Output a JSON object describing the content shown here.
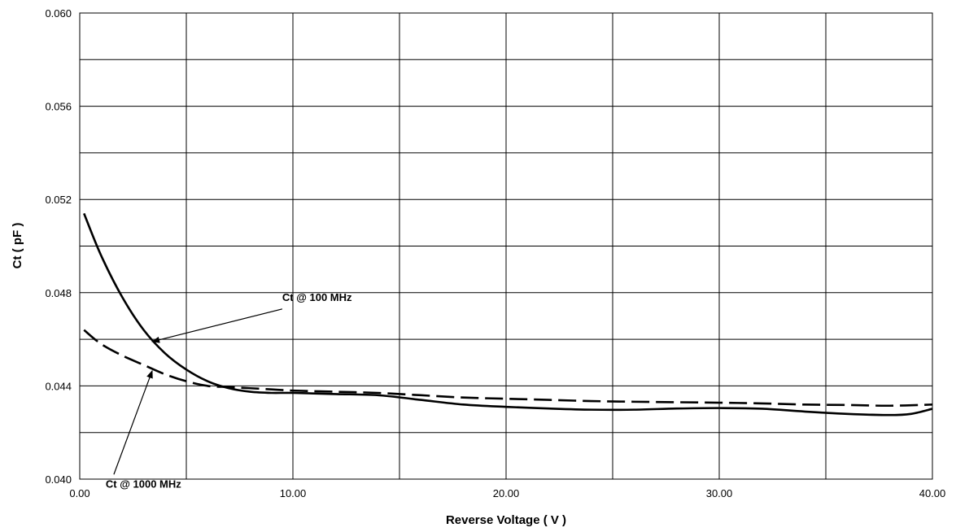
{
  "chart_data": {
    "type": "line",
    "title": "",
    "xlabel": "Reverse Voltage ( V )",
    "ylabel": "Ct ( pF )",
    "xlim": [
      0,
      40
    ],
    "ylim": [
      0.04,
      0.06
    ],
    "x_ticks": [
      "0.00",
      "10.00",
      "20.00",
      "30.00",
      "40.00"
    ],
    "y_ticks": [
      "0.040",
      "0.044",
      "0.048",
      "0.052",
      "0.056",
      "0.060"
    ],
    "x_gridlines": [
      0,
      5,
      10,
      15,
      20,
      25,
      30,
      35,
      40
    ],
    "y_gridlines": [
      0.04,
      0.042,
      0.044,
      0.046,
      0.048,
      0.05,
      0.052,
      0.054,
      0.056,
      0.058,
      0.06
    ],
    "grid": true,
    "legend": "none",
    "series": [
      {
        "label": "Ct @ 100 MHz",
        "style": "solid",
        "color": "#000000",
        "x": [
          0.2,
          1,
          2,
          3,
          4,
          5,
          6,
          7,
          8,
          9,
          10,
          12,
          14,
          16,
          18,
          20,
          22,
          24,
          26,
          28,
          30,
          32,
          34,
          36,
          38,
          39,
          40
        ],
        "y": [
          0.0514,
          0.0496,
          0.0478,
          0.0464,
          0.0454,
          0.0447,
          0.0442,
          0.0439,
          0.04375,
          0.0437,
          0.0437,
          0.04365,
          0.0436,
          0.0434,
          0.0432,
          0.0431,
          0.04303,
          0.04298,
          0.04298,
          0.04303,
          0.04305,
          0.04302,
          0.0429,
          0.0428,
          0.04275,
          0.0428,
          0.04302
        ]
      },
      {
        "label": "Ct @ 1000 MHz",
        "style": "dashed",
        "color": "#000000",
        "x": [
          0.2,
          1,
          2,
          3,
          4,
          5,
          6,
          7,
          8,
          9,
          10,
          12,
          14,
          16,
          18,
          20,
          22,
          24,
          26,
          28,
          30,
          32,
          34,
          36,
          38,
          40
        ],
        "y": [
          0.0464,
          0.0458,
          0.0453,
          0.0449,
          0.0445,
          0.0442,
          0.044,
          0.04395,
          0.0439,
          0.04385,
          0.0438,
          0.04375,
          0.0437,
          0.0436,
          0.0435,
          0.04345,
          0.0434,
          0.04335,
          0.04332,
          0.0433,
          0.04328,
          0.04325,
          0.0432,
          0.04318,
          0.04315,
          0.0432
        ]
      }
    ],
    "annotations": [
      {
        "text": "Ct @ 100 MHz",
        "arrow_to": [
          3.4,
          0.0459
        ],
        "arrow_from": [
          9.5,
          0.0473
        ]
      },
      {
        "text": "Ct @ 1000 MHz",
        "arrow_to": [
          3.4,
          0.04465
        ],
        "arrow_from": [
          1.6,
          0.0402
        ]
      }
    ]
  }
}
